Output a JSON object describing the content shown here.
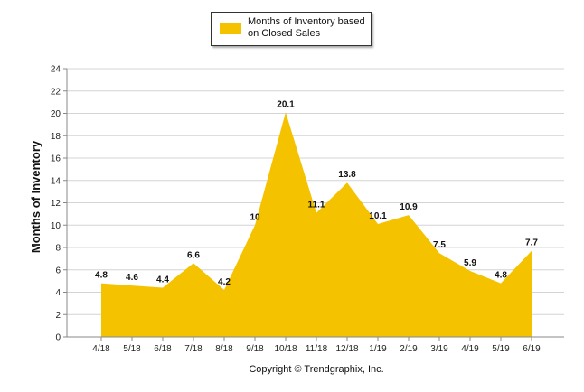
{
  "chart_data": {
    "type": "area",
    "title": "",
    "xlabel": "",
    "ylabel": "Months of Inventory",
    "ylim": [
      0,
      24
    ],
    "yticks": [
      0,
      2,
      4,
      6,
      8,
      10,
      12,
      14,
      16,
      18,
      20,
      22,
      24
    ],
    "grid": true,
    "legend_position": "top-center",
    "categories": [
      "4/18",
      "5/18",
      "6/18",
      "7/18",
      "8/18",
      "9/18",
      "10/18",
      "11/18",
      "12/18",
      "1/19",
      "2/19",
      "3/19",
      "4/19",
      "5/19",
      "6/19"
    ],
    "series": [
      {
        "name": "Months of Inventory based on Closed Sales",
        "color": "#F5C200",
        "values": [
          4.8,
          4.6,
          4.4,
          6.6,
          4.2,
          10,
          20.1,
          11.1,
          13.8,
          10.1,
          10.9,
          7.5,
          5.9,
          4.8,
          7.7
        ]
      }
    ],
    "footer": "Copyright © Trendgraphix, Inc."
  }
}
